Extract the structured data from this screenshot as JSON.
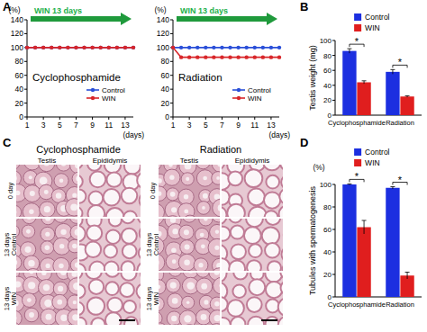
{
  "panel_labels": [
    "A",
    "B",
    "C",
    "D"
  ],
  "chart_data": [
    {
      "type": "line",
      "title": "Cyclophosphamide",
      "annotation": "WIN 13 days",
      "x_label": "(days)",
      "y_label": "(%)",
      "x": [
        1,
        2,
        3,
        4,
        5,
        6,
        7,
        8,
        9,
        10,
        11,
        12,
        13,
        14
      ],
      "series": [
        {
          "name": "Control",
          "color": "#2a4fd8",
          "marker": "circle",
          "values": [
            100,
            100,
            100,
            100,
            100,
            100,
            100,
            100,
            100,
            100,
            100,
            100,
            100,
            100
          ]
        },
        {
          "name": "WIN",
          "color": "#d8262a",
          "marker": "circle",
          "values": [
            100,
            100,
            100,
            100,
            100,
            100,
            100,
            100,
            100,
            100,
            100,
            100,
            100,
            100
          ]
        }
      ],
      "xlim": [
        1,
        14
      ],
      "xticks": [
        1,
        3,
        5,
        7,
        9,
        11,
        13
      ],
      "ylim": [
        0,
        140
      ],
      "yticks": [
        0,
        20,
        40,
        60,
        80,
        100,
        120,
        140
      ],
      "legend": "lower right"
    },
    {
      "type": "line",
      "title": "Radiation",
      "annotation": "WIN 13 days",
      "x_label": "(days)",
      "y_label": "(%)",
      "x": [
        1,
        2,
        3,
        4,
        5,
        6,
        7,
        8,
        9,
        10,
        11,
        12,
        13,
        14
      ],
      "series": [
        {
          "name": "Control",
          "color": "#2a4fd8",
          "marker": "circle",
          "values": [
            100,
            100,
            100,
            100,
            100,
            100,
            100,
            100,
            100,
            100,
            100,
            100,
            100,
            100
          ]
        },
        {
          "name": "WIN",
          "color": "#d8262a",
          "marker": "circle",
          "values": [
            100,
            86,
            86,
            86,
            86,
            86,
            86,
            86,
            86,
            86,
            86,
            86,
            86,
            86
          ]
        }
      ],
      "xlim": [
        1,
        14
      ],
      "xticks": [
        1,
        3,
        5,
        7,
        9,
        11,
        13
      ],
      "ylim": [
        0,
        140
      ],
      "yticks": [
        0,
        20,
        40,
        60,
        80,
        100,
        120,
        140
      ],
      "legend": "lower right"
    },
    {
      "type": "bar",
      "y_label": "Testis weight (mg)",
      "categories": [
        "Cyclophosphamide",
        "Radiation"
      ],
      "series": [
        {
          "name": "Control",
          "color": "#1c2fe0",
          "values": [
            86,
            58
          ],
          "errors": [
            3,
            3
          ]
        },
        {
          "name": "WIN",
          "color": "#e01e1e",
          "values": [
            44,
            25
          ],
          "errors": [
            2,
            1
          ]
        }
      ],
      "ylim": [
        0,
        100
      ],
      "yticks": [
        0,
        20,
        40,
        60,
        80,
        100
      ],
      "annotations": [
        "*",
        "*"
      ],
      "legend": "upper right"
    },
    {
      "type": "bar",
      "y_label": "Tubules with spermatogenesis",
      "y_unit": "(%)",
      "categories": [
        "Cyclophosphamide",
        "Radiation"
      ],
      "series": [
        {
          "name": "Control",
          "color": "#1c2fe0",
          "values": [
            100,
            97
          ],
          "errors": [
            0.5,
            1
          ]
        },
        {
          "name": "WIN",
          "color": "#e01e1e",
          "values": [
            62,
            19
          ],
          "errors": [
            6,
            3
          ]
        }
      ],
      "ylim": [
        0,
        100
      ],
      "yticks": [
        0,
        20,
        40,
        60,
        80,
        100
      ],
      "annotations": [
        "*",
        "*"
      ],
      "legend": "upper right"
    }
  ],
  "micrographs": {
    "groups": [
      {
        "title": "Cyclophosphamide",
        "columns": [
          "Testis",
          "Epididymis"
        ]
      },
      {
        "title": "Radiation",
        "columns": [
          "Testis",
          "Epididymis"
        ]
      }
    ],
    "rows": [
      [
        "0 day"
      ],
      [
        "13 days",
        "Control"
      ],
      [
        "13 days",
        "WIN"
      ]
    ]
  }
}
